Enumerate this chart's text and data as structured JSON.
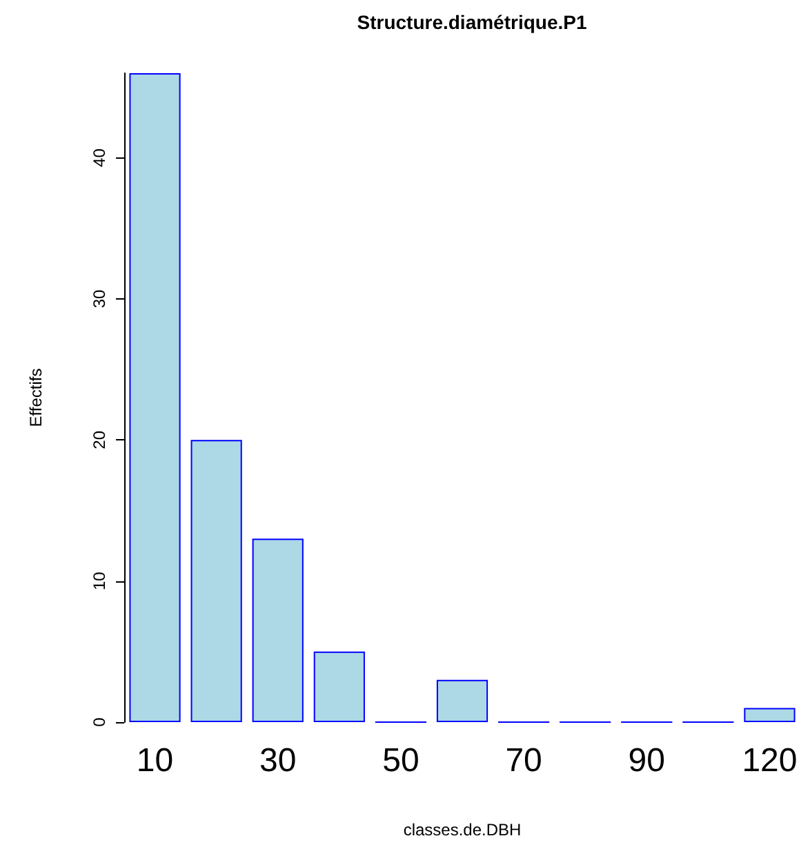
{
  "chart_data": {
    "type": "bar",
    "title": "Structure.diamétrique.P1",
    "xlabel": "classes.de.DBH",
    "ylabel": "Effectifs",
    "categories": [
      "10",
      null,
      "30",
      null,
      "50",
      null,
      "70",
      null,
      "90",
      null,
      "120"
    ],
    "values": [
      46,
      20,
      13,
      5,
      0,
      3,
      0,
      0,
      0,
      0,
      1
    ],
    "color": "#add8e6",
    "ylim": [
      0,
      46
    ],
    "yticks": [
      0,
      10,
      20,
      30,
      40
    ],
    "grid": false
  }
}
